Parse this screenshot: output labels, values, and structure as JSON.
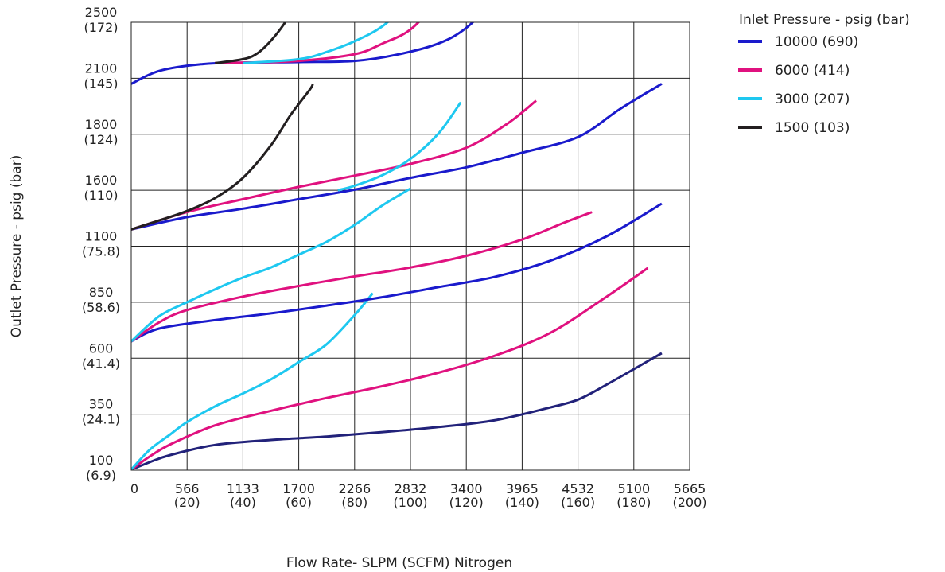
{
  "chart_data": {
    "type": "line",
    "xlabel": "Flow Rate- SLPM (SCFM) Nitrogen",
    "ylabel": "Outlet Pressure - psig (bar)",
    "x_ticks": [
      {
        "top": "0",
        "bottom": ""
      },
      {
        "top": "566",
        "bottom": "(20)"
      },
      {
        "top": "1133",
        "bottom": "(40)"
      },
      {
        "top": "1700",
        "bottom": "(60)"
      },
      {
        "top": "2266",
        "bottom": "(80)"
      },
      {
        "top": "2832",
        "bottom": "(100)"
      },
      {
        "top": "3400",
        "bottom": "(120)"
      },
      {
        "top": "3965",
        "bottom": "(140)"
      },
      {
        "top": "4532",
        "bottom": "(160)"
      },
      {
        "top": "5100",
        "bottom": "(180)"
      },
      {
        "top": "5665",
        "bottom": "(200)"
      }
    ],
    "y_ticks": [
      {
        "top": "2500",
        "bottom": "(172)"
      },
      {
        "top": "2100",
        "bottom": "(145)"
      },
      {
        "top": "1800",
        "bottom": "(124)"
      },
      {
        "top": "1600",
        "bottom": "(110)"
      },
      {
        "top": "1100",
        "bottom": "(75.8)"
      },
      {
        "top": "850",
        "bottom": "(58.6)"
      },
      {
        "top": "600",
        "bottom": "(41.4)"
      },
      {
        "top": "350",
        "bottom": "(24.1)"
      },
      {
        "top": "100",
        "bottom": "(6.9)"
      }
    ],
    "x_unit": "SCFM",
    "y_unit": "gridline index (ticks top to bottom: 2500, 2100, 1800, 1600, 1100, 850, 600, 350, 100 psig)",
    "xlim": [
      0,
      200
    ],
    "ylim": [
      0,
      8
    ],
    "grid": true,
    "legend": {
      "title": "Inlet Pressure - psig (bar)",
      "placement": "right",
      "entries": [
        {
          "label": "10000 (690)",
          "color": "#1a1acc"
        },
        {
          "label": "6000 (414)",
          "color": "#e0117f"
        },
        {
          "label": "3000 (207)",
          "color": "#1ec8f0"
        },
        {
          "label": "1500 (103)",
          "color": "#231f20"
        }
      ]
    },
    "series": [
      {
        "group": "2500 set",
        "color": "#22227a",
        "points": [
          [
            0,
            7.99
          ],
          [
            6.5,
            7.86
          ],
          [
            14,
            7.73
          ],
          [
            30,
            7.55
          ],
          [
            50,
            7.46
          ],
          [
            70,
            7.4
          ],
          [
            90,
            7.32
          ],
          [
            110,
            7.23
          ],
          [
            130,
            7.11
          ],
          [
            150,
            6.88
          ],
          [
            160,
            6.74
          ],
          [
            170,
            6.48
          ],
          [
            190,
            5.91
          ]
        ]
      },
      {
        "group": "2500 set",
        "color": "#e0117f",
        "points": [
          [
            0,
            7.99
          ],
          [
            6.5,
            7.76
          ],
          [
            14,
            7.54
          ],
          [
            30,
            7.2
          ],
          [
            50,
            6.94
          ],
          [
            70,
            6.71
          ],
          [
            90,
            6.5
          ],
          [
            110,
            6.26
          ],
          [
            130,
            5.96
          ],
          [
            150,
            5.55
          ],
          [
            170,
            4.91
          ],
          [
            185,
            4.39
          ]
        ]
      },
      {
        "group": "2500 set",
        "color": "#1ec8f0",
        "points": [
          [
            0,
            7.99
          ],
          [
            6.5,
            7.64
          ],
          [
            14,
            7.36
          ],
          [
            20,
            7.14
          ],
          [
            30,
            6.86
          ],
          [
            40,
            6.63
          ],
          [
            50,
            6.38
          ],
          [
            60,
            6.07
          ],
          [
            70,
            5.75
          ],
          [
            80,
            5.23
          ],
          [
            86.5,
            4.84
          ]
        ]
      },
      {
        "group": "1800 set",
        "color": "#1a1acc",
        "points": [
          [
            0,
            5.7
          ],
          [
            10,
            5.47
          ],
          [
            30,
            5.32
          ],
          [
            50,
            5.2
          ],
          [
            70,
            5.06
          ],
          [
            90,
            4.91
          ],
          [
            110,
            4.73
          ],
          [
            130,
            4.55
          ],
          [
            150,
            4.26
          ],
          [
            170,
            3.83
          ],
          [
            190,
            3.24
          ]
        ]
      },
      {
        "group": "1800 set",
        "color": "#e0117f",
        "points": [
          [
            0,
            5.7
          ],
          [
            10,
            5.36
          ],
          [
            20,
            5.14
          ],
          [
            40,
            4.9
          ],
          [
            60,
            4.71
          ],
          [
            80,
            4.54
          ],
          [
            100,
            4.38
          ],
          [
            120,
            4.17
          ],
          [
            140,
            3.88
          ],
          [
            155,
            3.58
          ],
          [
            165,
            3.39
          ]
        ]
      },
      {
        "group": "1800 set",
        "color": "#1ec8f0",
        "points": [
          [
            0,
            5.7
          ],
          [
            10,
            5.25
          ],
          [
            20,
            5.0
          ],
          [
            30,
            4.77
          ],
          [
            40,
            4.56
          ],
          [
            50,
            4.38
          ],
          [
            60,
            4.15
          ],
          [
            70,
            3.92
          ],
          [
            80,
            3.62
          ],
          [
            90,
            3.27
          ],
          [
            100,
            2.97
          ]
        ]
      },
      {
        "group": "1100 set",
        "color": "#1a1acc",
        "points": [
          [
            0,
            3.7
          ],
          [
            20,
            3.48
          ],
          [
            40,
            3.33
          ],
          [
            60,
            3.16
          ],
          [
            80,
            2.99
          ],
          [
            100,
            2.78
          ],
          [
            120,
            2.59
          ],
          [
            140,
            2.33
          ],
          [
            160,
            2.05
          ],
          [
            175,
            1.55
          ],
          [
            190,
            1.1
          ]
        ]
      },
      {
        "group": "1100 set",
        "color": "#e0117f",
        "points": [
          [
            0,
            3.7
          ],
          [
            20,
            3.39
          ],
          [
            40,
            3.16
          ],
          [
            60,
            2.94
          ],
          [
            80,
            2.74
          ],
          [
            100,
            2.53
          ],
          [
            120,
            2.24
          ],
          [
            135,
            1.8
          ],
          [
            145,
            1.4
          ]
        ]
      },
      {
        "group": "1100 set",
        "color": "#1ec8f0",
        "points": [
          [
            74,
            3.0
          ],
          [
            80,
            2.92
          ],
          [
            90,
            2.73
          ],
          [
            100,
            2.44
          ],
          [
            110,
            1.99
          ],
          [
            118,
            1.43
          ]
        ]
      },
      {
        "group": "1100 set",
        "color": "#231f20",
        "points": [
          [
            0,
            3.7
          ],
          [
            10,
            3.54
          ],
          [
            20,
            3.37
          ],
          [
            30,
            3.14
          ],
          [
            40,
            2.78
          ],
          [
            50,
            2.2
          ],
          [
            57,
            1.66
          ],
          [
            64,
            1.2
          ],
          [
            65,
            1.1
          ]
        ]
      },
      {
        "group": "350 set",
        "color": "#1a1acc",
        "points": [
          [
            0,
            1.1
          ],
          [
            10,
            0.87
          ],
          [
            25,
            0.75
          ],
          [
            40,
            0.72
          ],
          [
            60,
            0.71
          ],
          [
            80,
            0.69
          ],
          [
            95,
            0.58
          ],
          [
            110,
            0.38
          ],
          [
            120,
            0.1
          ],
          [
            130,
            -0.39
          ]
        ]
      },
      {
        "group": "350 set",
        "color": "#e0117f",
        "points": [
          [
            30,
            0.73
          ],
          [
            40,
            0.72
          ],
          [
            60,
            0.69
          ],
          [
            80,
            0.57
          ],
          [
            90,
            0.38
          ],
          [
            100,
            0.13
          ],
          [
            110,
            -0.38
          ]
        ]
      },
      {
        "group": "350 set",
        "color": "#1ec8f0",
        "points": [
          [
            40,
            0.73
          ],
          [
            60,
            0.66
          ],
          [
            70,
            0.53
          ],
          [
            80,
            0.34
          ],
          [
            90,
            0.07
          ],
          [
            100,
            -0.38
          ]
        ]
      },
      {
        "group": "350 set",
        "color": "#231f20",
        "points": [
          [
            30,
            0.73
          ],
          [
            40,
            0.66
          ],
          [
            45,
            0.56
          ],
          [
            50,
            0.33
          ],
          [
            55,
            0.01
          ],
          [
            60,
            -0.41
          ]
        ]
      }
    ]
  }
}
